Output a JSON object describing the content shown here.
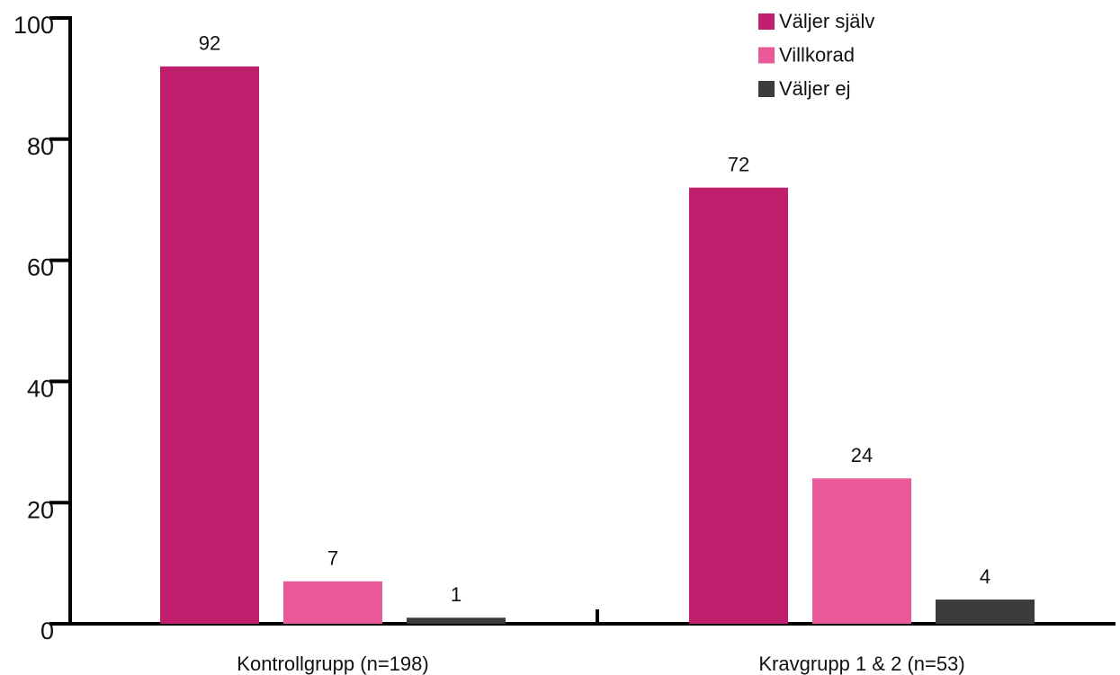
{
  "chart_data": {
    "type": "bar",
    "categories": [
      "Kontrollgrupp (n=198)",
      "Kravgrupp 1 & 2 (n=53)"
    ],
    "series": [
      {
        "name": "Väljer själv",
        "color": "#c01f6e",
        "values": [
          92,
          72
        ]
      },
      {
        "name": "Villkorad",
        "color": "#ea5a9a",
        "values": [
          7,
          24
        ]
      },
      {
        "name": "Väljer ej",
        "color": "#3c3c3c",
        "values": [
          1,
          4
        ]
      }
    ],
    "ylim": [
      0,
      100
    ],
    "yticks": [
      0,
      20,
      40,
      60,
      80,
      100
    ],
    "legend": "top-right"
  }
}
